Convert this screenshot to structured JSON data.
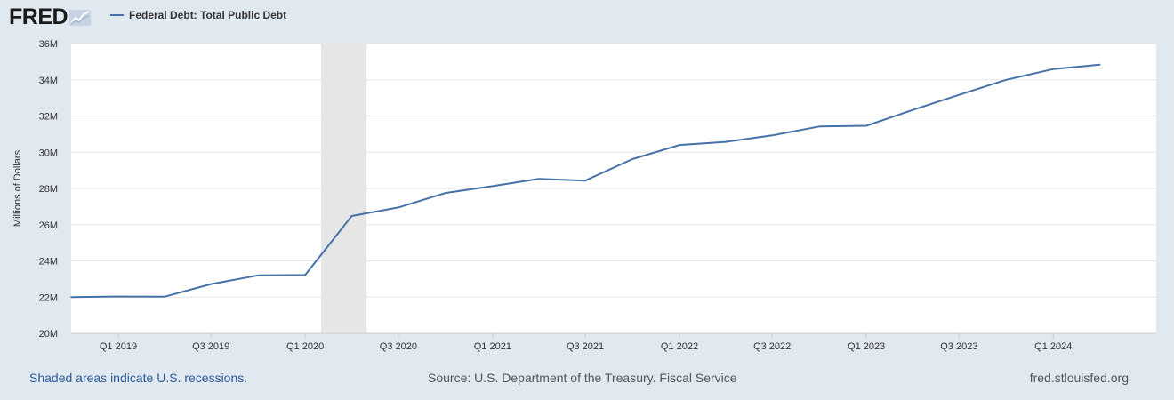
{
  "header": {
    "logo_text": "FRED",
    "legend_label": "Federal Debt: Total Public Debt"
  },
  "footer": {
    "recession_note": "Shaded areas indicate U.S. recessions.",
    "source": "Source: U.S. Department of the Treasury. Fiscal Service",
    "site": "fred.stlouisfed.org"
  },
  "colors": {
    "series": "#4572a7",
    "recession": "#e6e6e6",
    "grid": "#e6e6e6",
    "background": "#e1e9f0"
  },
  "chart_data": {
    "type": "line",
    "title": "",
    "xlabel": "",
    "ylabel": "Millions of Dollars",
    "ylim": [
      20000000,
      36000000
    ],
    "yticks": [
      20000000,
      22000000,
      24000000,
      26000000,
      28000000,
      30000000,
      32000000,
      34000000,
      36000000
    ],
    "ytick_labels": [
      "20M",
      "22M",
      "24M",
      "26M",
      "28M",
      "30M",
      "32M",
      "34M",
      "36M"
    ],
    "xlim": [
      "2018-10-01",
      "2024-07-20"
    ],
    "xticks": [
      "2019-01-01",
      "2019-07-01",
      "2020-01-01",
      "2020-07-01",
      "2021-01-01",
      "2021-07-01",
      "2022-01-01",
      "2022-07-01",
      "2023-01-01",
      "2023-07-01",
      "2024-01-01"
    ],
    "xtick_labels": [
      "Q1 2019",
      "Q3 2019",
      "Q1 2020",
      "Q3 2020",
      "Q1 2021",
      "Q3 2021",
      "Q1 2022",
      "Q3 2022",
      "Q1 2023",
      "Q3 2023",
      "Q1 2024"
    ],
    "grid": true,
    "legend_position": "top-left",
    "recessions": [
      {
        "start": "2020-02-01",
        "end": "2020-04-30"
      }
    ],
    "series": [
      {
        "name": "Federal Debt: Total Public Debt",
        "x": [
          "2018-10-01",
          "2019-01-01",
          "2019-04-01",
          "2019-07-01",
          "2019-10-01",
          "2020-01-01",
          "2020-04-01",
          "2020-07-01",
          "2020-10-01",
          "2021-01-01",
          "2021-04-01",
          "2021-07-01",
          "2021-10-01",
          "2022-01-01",
          "2022-04-01",
          "2022-07-01",
          "2022-10-01",
          "2023-01-01",
          "2023-04-01",
          "2023-07-01",
          "2023-10-01",
          "2024-01-01",
          "2024-04-01"
        ],
        "y": [
          22000000,
          22030000,
          22020000,
          22720000,
          23200000,
          23220000,
          26480000,
          26950000,
          27750000,
          28130000,
          28530000,
          28430000,
          29620000,
          30400000,
          30570000,
          30930000,
          31420000,
          31460000,
          32330000,
          33170000,
          34000000,
          34590000,
          34830000
        ]
      }
    ]
  }
}
